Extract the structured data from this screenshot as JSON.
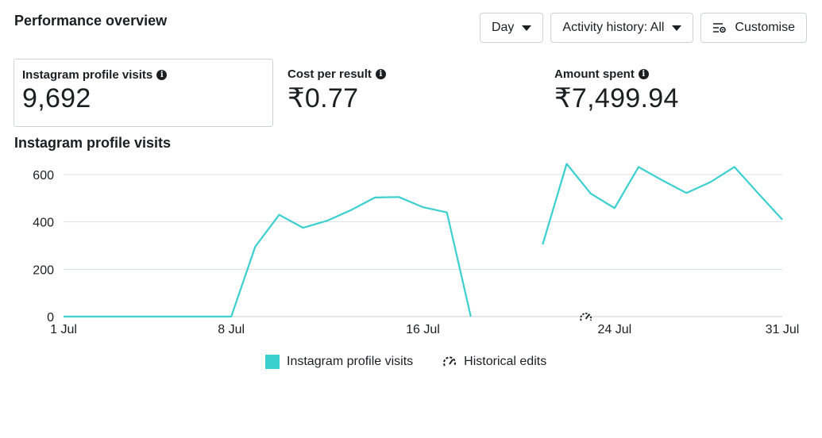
{
  "header": {
    "title": "Performance overview"
  },
  "toolbar": {
    "day_label": "Day",
    "activity_label": "Activity history: All",
    "customise_label": "Customise"
  },
  "metrics": [
    {
      "label": "Instagram profile visits",
      "value": "9,692"
    },
    {
      "label": "Cost per result",
      "value": "₹0.77"
    },
    {
      "label": "Amount spent",
      "value": "₹7,499.94"
    }
  ],
  "chart_title": "Instagram profile visits",
  "colors": {
    "series": "#3ccfcf",
    "grid": "#dcdfe3",
    "text": "#1c1e21"
  },
  "chart_data": {
    "type": "line",
    "title": "Instagram profile visits",
    "xlabel": "",
    "ylabel": "",
    "x_ticks": [
      "1 Jul",
      "8 Jul",
      "16 Jul",
      "24 Jul",
      "31 Jul"
    ],
    "x_tick_days": [
      1,
      8,
      16,
      24,
      31
    ],
    "xlim": [
      1,
      31
    ],
    "y_ticks": [
      0,
      200,
      400,
      600
    ],
    "ylim": [
      0,
      620
    ],
    "grid": true,
    "legend_position": "bottom",
    "series": [
      {
        "name": "Instagram profile visits",
        "segments": [
          {
            "x": [
              1,
              2,
              3,
              4,
              5,
              6,
              7,
              8,
              9,
              10,
              11,
              12,
              13,
              14,
              15,
              16,
              17,
              18
            ],
            "y": [
              0,
              0,
              0,
              0,
              0,
              0,
              0,
              0,
              295,
              430,
              375,
              405,
              450,
              503,
              505,
              462,
              440,
              0
            ]
          },
          {
            "x": [
              21,
              22,
              23,
              24,
              25,
              26,
              27,
              28,
              29,
              30,
              31
            ],
            "y": [
              305,
              645,
              520,
              458,
              632,
              575,
              522,
              568,
              632,
              520,
              410
            ]
          }
        ]
      }
    ],
    "annotations": [
      {
        "type": "historical-edit",
        "x": 23
      }
    ],
    "legend": [
      "Instagram profile visits",
      "Historical edits"
    ]
  }
}
